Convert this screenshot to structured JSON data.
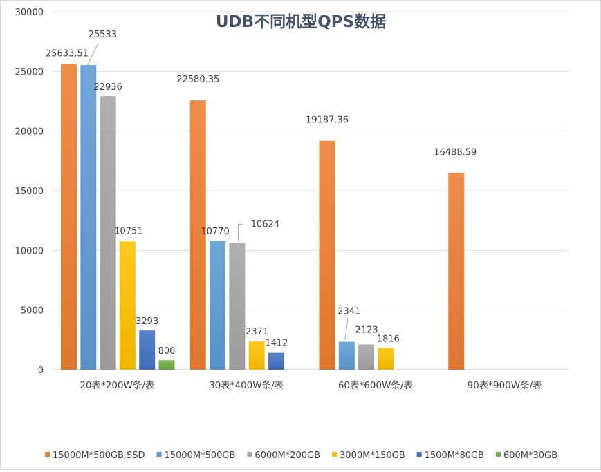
{
  "chart_data": {
    "type": "bar",
    "title": "UDB不同机型QPS数据",
    "xlabel": "",
    "ylabel": "",
    "ylim": [
      0,
      30000
    ],
    "yticks": [
      0,
      5000,
      10000,
      15000,
      20000,
      25000,
      30000
    ],
    "grid": true,
    "legend_position": "bottom",
    "categories": [
      "20表*200W条/表",
      "30表*400W条/表",
      "60表*600W条/表",
      "90表*900W条/表"
    ],
    "series": [
      {
        "name": "15000M*500GB SSD",
        "color": "#ed7d31",
        "values": [
          25633.51,
          22580.35,
          19187.36,
          16488.59
        ],
        "labels": [
          "25633.51",
          "22580.35",
          "19187.36",
          "16488.59"
        ]
      },
      {
        "name": "15000M*500GB",
        "color": "#5b9bd5",
        "values": [
          25533,
          10770,
          2341,
          null
        ],
        "labels": [
          "25533",
          "10770",
          "2341",
          ""
        ]
      },
      {
        "name": "6000M*200GB",
        "color": "#a5a5a5",
        "values": [
          22936,
          10624,
          2123,
          null
        ],
        "labels": [
          "22936",
          "10624",
          "2123",
          ""
        ]
      },
      {
        "name": "3000M*150GB",
        "color": "#ffc000",
        "values": [
          10751,
          2371,
          1816,
          null
        ],
        "labels": [
          "10751",
          "2371",
          "1816",
          ""
        ]
      },
      {
        "name": "1500M*80GB",
        "color": "#4472c4",
        "values": [
          3293,
          1412,
          null,
          null
        ],
        "labels": [
          "3293",
          "1412",
          "",
          ""
        ]
      },
      {
        "name": "600M*30GB",
        "color": "#70ad47",
        "values": [
          800,
          null,
          null,
          null
        ],
        "labels": [
          "800",
          "",
          "",
          ""
        ]
      }
    ]
  }
}
